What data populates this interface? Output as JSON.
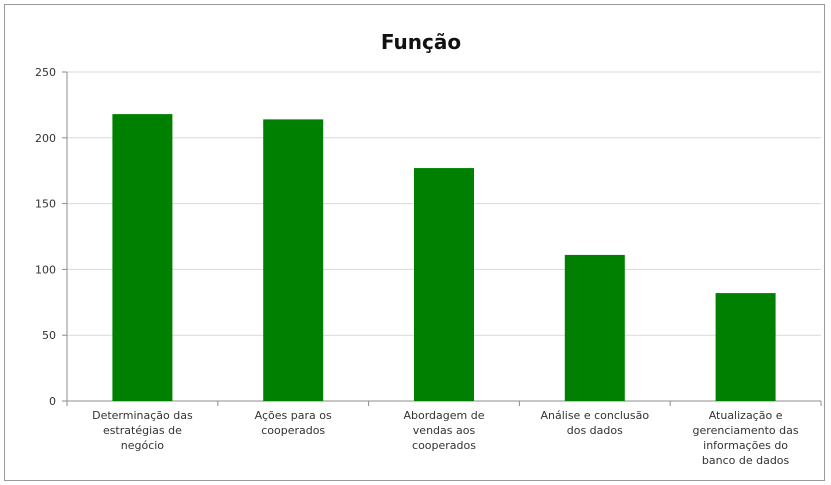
{
  "chart_data": {
    "type": "bar",
    "title": "Função",
    "xlabel": "",
    "ylabel": "",
    "categories": [
      "Determinação das estratégias de negócio",
      "Ações para os cooperados",
      "Abordagem de vendas aos cooperados",
      "Análise e conclusão dos dados",
      "Atualização e gerenciamento das informações do banco de dados"
    ],
    "category_lines": [
      [
        "Determinação das",
        "estratégias de",
        "negócio"
      ],
      [
        "Ações para os",
        "cooperados"
      ],
      [
        "Abordagem de",
        "vendas aos",
        "cooperados"
      ],
      [
        "Análise e conclusão",
        "dos dados"
      ],
      [
        "Atualização e",
        "gerenciamento das",
        "informações do",
        "banco de dados"
      ]
    ],
    "values": [
      218,
      214,
      177,
      111,
      82
    ],
    "ylim": [
      0,
      250
    ],
    "yticks": [
      0,
      50,
      100,
      150,
      200,
      250
    ],
    "grid": true,
    "legend": "none",
    "bar_color": "#008000",
    "grid_color": "#d9d9d9",
    "axis_color": "#8c8c8c"
  }
}
